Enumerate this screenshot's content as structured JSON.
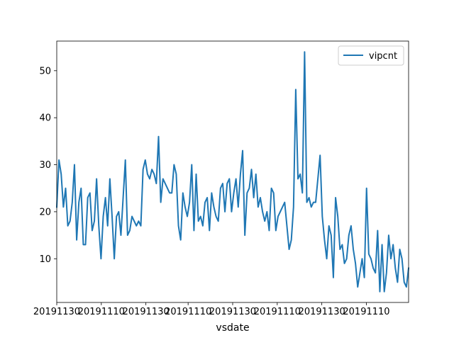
{
  "chart_data": {
    "type": "line",
    "xlabel": "vsdate",
    "ylabel": "",
    "xlim": [
      0,
      150
    ],
    "ylim": [
      0.7,
      56.3
    ],
    "yticks": [
      10,
      20,
      30,
      40,
      50
    ],
    "xticks": [
      {
        "pos": 0,
        "label": "20191130"
      },
      {
        "pos": 19,
        "label": "20191110"
      },
      {
        "pos": 38,
        "label": "20191130"
      },
      {
        "pos": 56,
        "label": "20191110"
      },
      {
        "pos": 75,
        "label": "20191130"
      },
      {
        "pos": 94,
        "label": "20191110"
      },
      {
        "pos": 113,
        "label": "20191130"
      },
      {
        "pos": 132,
        "label": "20191110"
      }
    ],
    "legend": {
      "position": "top-right"
    },
    "series": [
      {
        "name": "vipcnt",
        "color": "#1f77b4",
        "values": [
          21,
          31,
          28,
          21,
          25,
          17,
          18,
          22,
          30,
          14,
          22,
          25,
          13,
          13,
          23,
          24,
          16,
          18,
          27,
          17,
          10,
          19,
          23,
          17,
          27,
          19,
          10,
          19,
          20,
          15,
          23,
          31,
          15,
          16,
          19,
          18,
          17,
          18,
          17,
          29,
          31,
          28,
          27,
          29,
          28,
          26,
          36,
          22,
          27,
          26,
          25,
          24,
          24,
          30,
          28,
          17,
          14,
          24,
          21,
          19,
          22,
          30,
          16,
          28,
          18,
          19,
          17,
          22,
          23,
          16,
          24,
          21,
          19,
          18,
          25,
          26,
          20,
          26,
          27,
          20,
          24,
          27,
          21,
          28,
          33,
          15,
          24,
          25,
          29,
          23,
          28,
          21,
          23,
          20,
          18,
          20,
          16,
          25,
          24,
          16,
          19,
          20,
          21,
          22,
          17,
          12,
          14,
          21,
          46,
          27,
          28,
          24,
          54,
          22,
          23,
          21,
          22,
          22,
          27,
          32,
          19,
          14,
          10,
          17,
          15,
          6,
          23,
          19,
          12,
          13,
          9,
          10,
          15,
          17,
          12,
          9,
          4,
          7,
          10,
          6,
          25,
          11,
          10,
          8,
          7,
          16,
          3,
          13,
          3,
          7,
          15,
          10,
          13,
          8,
          5,
          12,
          10,
          5,
          4,
          8
        ]
      }
    ]
  }
}
